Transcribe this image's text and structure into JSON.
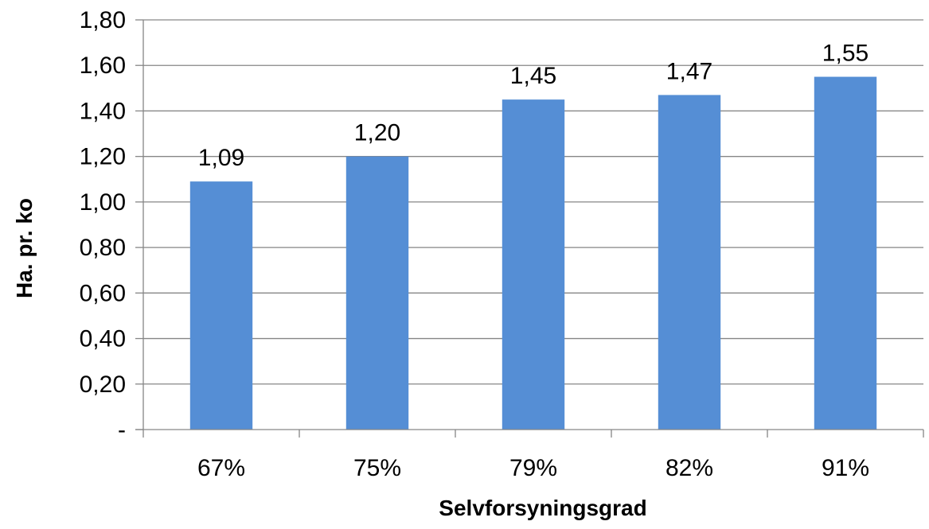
{
  "chart_data": {
    "type": "bar",
    "categories": [
      "67%",
      "75%",
      "79%",
      "82%",
      "91%"
    ],
    "values": [
      1.09,
      1.2,
      1.45,
      1.47,
      1.55
    ],
    "data_labels": [
      "1,09",
      "1,20",
      "1,45",
      "1,47",
      "1,55"
    ],
    "xlabel": "Selvforsyningsgrad",
    "ylabel": "Ha. pr. ko",
    "ylim": [
      0,
      1.8
    ],
    "yticks": [
      0,
      0.2,
      0.4,
      0.6,
      0.8,
      1.0,
      1.2,
      1.4,
      1.6,
      1.8
    ],
    "ytick_labels": [
      "-",
      "0,20",
      "0,40",
      "0,60",
      "0,80",
      "1,00",
      "1,20",
      "1,40",
      "1,60",
      "1,80"
    ],
    "grid": "horizontal",
    "legend": "none",
    "colors": {
      "bar": "#558ED5",
      "grid": "#868686",
      "axis": "#868686"
    }
  }
}
